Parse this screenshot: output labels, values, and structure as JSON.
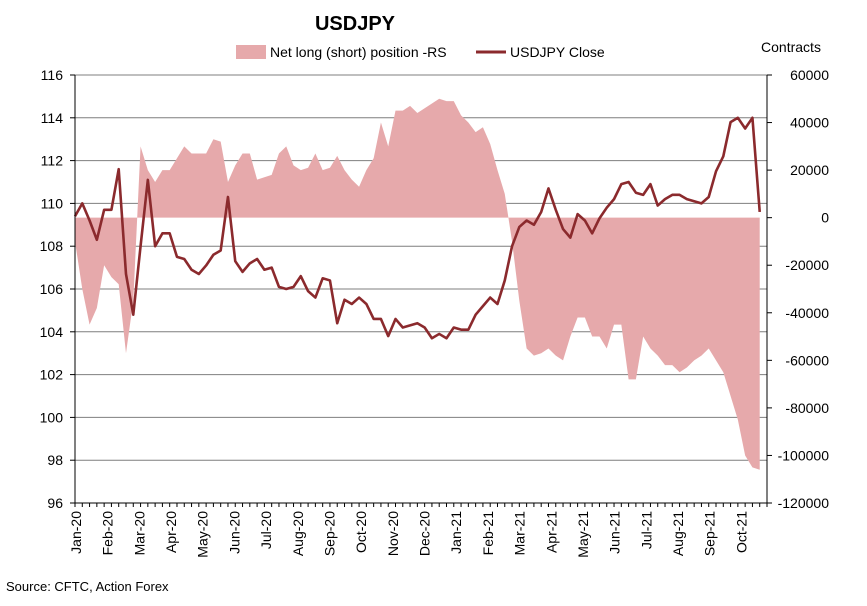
{
  "chart_data": {
    "type": "area+line",
    "title": "USDJPY",
    "source": "Source: CFTC, Action Forex",
    "right_axis_title": "Contracts",
    "legend": [
      {
        "name": "Net long (short) position -RS",
        "kind": "area",
        "color": "#e6a9ab"
      },
      {
        "name": "USDJPY Close",
        "kind": "line",
        "color": "#8b2a2d"
      }
    ],
    "left_axis": {
      "min": 96,
      "max": 116,
      "step": 2,
      "ticks": [
        "96",
        "98",
        "100",
        "102",
        "104",
        "106",
        "108",
        "110",
        "112",
        "114",
        "116"
      ]
    },
    "right_axis": {
      "min": -120000,
      "max": 60000,
      "step": 20000,
      "ticks": [
        "-120000",
        "-100000",
        "-80000",
        "-60000",
        "-40000",
        "-20000",
        "0",
        "20000",
        "40000",
        "60000"
      ]
    },
    "x_labels": [
      "Jan-20",
      "Feb-20",
      "Mar-20",
      "Apr-20",
      "May-20",
      "Jun-20",
      "Jul-20",
      "Aug-20",
      "Sep-20",
      "Oct-20",
      "Nov-20",
      "Dec-20",
      "Jan-21",
      "Feb-21",
      "Mar-21",
      "Apr-21",
      "May-21",
      "Jun-21",
      "Jul-21",
      "Aug-21",
      "Sep-21",
      "Oct-21"
    ],
    "weeks_per_label": 4.35,
    "total_weeks": 95,
    "series": [
      {
        "name": "USDJPY Close",
        "axis": "left",
        "values": [
          109.4,
          110.0,
          109.2,
          108.3,
          109.7,
          109.7,
          111.6,
          106.7,
          104.8,
          108.0,
          111.1,
          108.0,
          108.6,
          108.6,
          107.5,
          107.4,
          106.9,
          106.7,
          107.1,
          107.6,
          107.8,
          110.3,
          107.3,
          106.8,
          107.2,
          107.4,
          106.9,
          107.0,
          106.1,
          106.0,
          106.1,
          106.6,
          105.9,
          105.6,
          106.5,
          106.4,
          104.4,
          105.5,
          105.3,
          105.6,
          105.3,
          104.6,
          104.6,
          103.8,
          104.6,
          104.2,
          104.3,
          104.4,
          104.2,
          103.7,
          103.9,
          103.7,
          104.2,
          104.1,
          104.1,
          104.8,
          105.2,
          105.6,
          105.3,
          106.4,
          108.0,
          108.9,
          109.2,
          109.0,
          109.6,
          110.7,
          109.7,
          108.8,
          108.4,
          109.5,
          109.2,
          108.6,
          109.3,
          109.8,
          110.2,
          110.9,
          111.0,
          110.5,
          110.4,
          110.9,
          109.9,
          110.2,
          110.4,
          110.4,
          110.2,
          110.1,
          110.0,
          110.3,
          111.5,
          112.2,
          113.8,
          114.0,
          113.5,
          114.0,
          109.6
        ]
      },
      {
        "name": "Net long (short) position -RS",
        "axis": "right",
        "values": [
          -10000,
          -30000,
          -45000,
          -38000,
          -20000,
          -25000,
          -28000,
          -57000,
          -35000,
          30000,
          20000,
          15000,
          20000,
          20000,
          25000,
          30000,
          27000,
          27000,
          27000,
          33000,
          32000,
          15000,
          22000,
          27000,
          27000,
          16000,
          17000,
          18000,
          27000,
          30000,
          22000,
          20000,
          21000,
          27000,
          20000,
          21000,
          26000,
          20000,
          16000,
          13000,
          20000,
          25000,
          40000,
          30000,
          45000,
          45000,
          47000,
          44000,
          46000,
          48000,
          50000,
          49000,
          49000,
          43000,
          40000,
          36000,
          38000,
          31000,
          20000,
          10000,
          -10000,
          -35000,
          -55000,
          -58000,
          -57000,
          -55000,
          -58000,
          -60000,
          -50000,
          -42000,
          -42000,
          -50000,
          -50000,
          -55000,
          -45000,
          -45000,
          -68000,
          -68000,
          -50000,
          -55000,
          -58000,
          -62000,
          -62000,
          -65000,
          -63000,
          -60000,
          -58000,
          -55000,
          -60000,
          -65000,
          -75000,
          -85000,
          -100000,
          -105000,
          -106000
        ]
      }
    ]
  }
}
